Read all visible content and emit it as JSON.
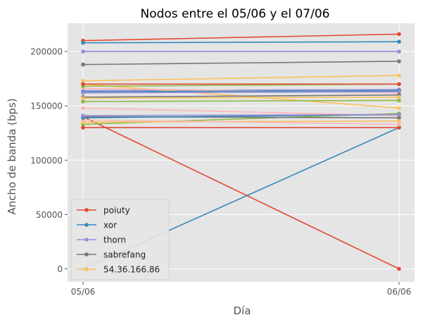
{
  "chart_data": {
    "type": "line",
    "title": "Nodos entre el 05/06 y el 07/06",
    "xlabel": "Día",
    "ylabel": "Ancho de banda (bps)",
    "categories": [
      "05/06",
      "06/06"
    ],
    "ylim": [
      -12000,
      226000
    ],
    "yticks": [
      0,
      50000,
      100000,
      150000,
      200000
    ],
    "ytick_labels": [
      "0",
      "50000",
      "100000",
      "150000",
      "200000"
    ],
    "grid": true,
    "legend_position": "lower-left",
    "series": [
      {
        "name": "poiuty",
        "color": "#E24A33",
        "values": [
          140000,
          0
        ]
      },
      {
        "name": "xor",
        "color": "#348ABD",
        "values": [
          0,
          130000
        ]
      },
      {
        "name": "thorn",
        "color": "#988ED5",
        "values": [
          200000,
          200000
        ]
      },
      {
        "name": "sabrefang",
        "color": "#777777",
        "values": [
          188000,
          191000
        ]
      },
      {
        "name": "54.36.166.86",
        "color": "#FBC15E",
        "values": [
          173000,
          178000
        ]
      },
      {
        "color": "#8EBA42",
        "values": [
          133000,
          143000
        ]
      },
      {
        "color": "#FFB5B8",
        "values": [
          148000,
          141000
        ]
      },
      {
        "color": "#E24A33",
        "values": [
          210000,
          216000
        ]
      },
      {
        "color": "#348ABD",
        "values": [
          208000,
          209000
        ]
      },
      {
        "color": "#988ED5",
        "values": [
          164000,
          165000
        ]
      },
      {
        "color": "#777777",
        "values": [
          140000,
          139000
        ]
      },
      {
        "color": "#FBC15E",
        "values": [
          170000,
          148000
        ]
      },
      {
        "color": "#8EBA42",
        "values": [
          154000,
          155000
        ]
      },
      {
        "color": "#FFB5B8",
        "values": [
          166000,
          162000
        ]
      },
      {
        "color": "#E24A33",
        "values": [
          130000,
          130000
        ]
      },
      {
        "color": "#348ABD",
        "values": [
          163000,
          164000
        ]
      },
      {
        "color": "#988ED5",
        "values": [
          162000,
          163000
        ]
      },
      {
        "color": "#777777",
        "values": [
          158000,
          160000
        ]
      },
      {
        "color": "#FBC15E",
        "values": [
          135000,
          136000
        ]
      },
      {
        "color": "#8EBA42",
        "values": [
          168000,
          170000
        ]
      },
      {
        "color": "#FFB5B8",
        "values": [
          137000,
          133000
        ]
      },
      {
        "color": "#E24A33",
        "values": [
          170000,
          170000
        ]
      },
      {
        "color": "#348ABD",
        "values": [
          139000,
          142000
        ]
      },
      {
        "color": "#988ED5",
        "values": [
          141000,
          142000
        ]
      },
      {
        "color": "#FBC15E",
        "values": [
          157000,
          158000
        ]
      }
    ]
  }
}
